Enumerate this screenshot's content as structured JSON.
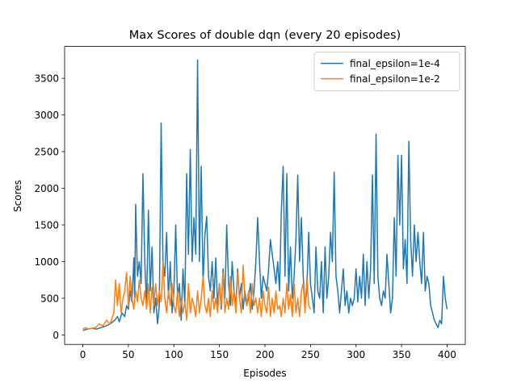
{
  "chart_data": {
    "type": "line",
    "title": "Max Scores of double dqn (every 20 episodes)",
    "x_label": "Episodes",
    "y_label": "Scores",
    "xlim": [
      -20,
      420
    ],
    "ylim": [
      -130,
      3935
    ],
    "xticks": [
      0,
      50,
      100,
      150,
      200,
      250,
      300,
      350,
      400
    ],
    "yticks": [
      0,
      500,
      1000,
      1500,
      2000,
      2500,
      3000,
      3500
    ],
    "legend": "upper right",
    "series": [
      {
        "name": "final_epsilon=1e-4",
        "color": "#1f77b4",
        "x": [
          0,
          5,
          10,
          15,
          20,
          25,
          30,
          35,
          38,
          40,
          43,
          46,
          48,
          50,
          52,
          54,
          56,
          57,
          58,
          60,
          62,
          64,
          66,
          68,
          70,
          72,
          74,
          76,
          78,
          80,
          82,
          84,
          86,
          88,
          90,
          92,
          94,
          96,
          98,
          100,
          102,
          104,
          106,
          108,
          110,
          112,
          114,
          116,
          118,
          120,
          122,
          124,
          126,
          128,
          130,
          132,
          134,
          136,
          138,
          140,
          142,
          144,
          146,
          148,
          150,
          152,
          154,
          156,
          158,
          160,
          162,
          164,
          166,
          168,
          170,
          172,
          174,
          176,
          178,
          180,
          182,
          184,
          186,
          188,
          190,
          192,
          194,
          196,
          198,
          200,
          202,
          204,
          206,
          208,
          210,
          212,
          214,
          216,
          218,
          220,
          222,
          224,
          226,
          228,
          230,
          232,
          234,
          236,
          238,
          240,
          242,
          244,
          246,
          248,
          250,
          252,
          254,
          256,
          258,
          260,
          262,
          264,
          266,
          268,
          270,
          272,
          274,
          276,
          278,
          280,
          282,
          284,
          286,
          288,
          290,
          292,
          294,
          296,
          298,
          300,
          302,
          304,
          306,
          308,
          310,
          312,
          314,
          316,
          318,
          320,
          322,
          324,
          326,
          328,
          330,
          332,
          334,
          336,
          338,
          340,
          342,
          344,
          346,
          348,
          350,
          352,
          354,
          356,
          358,
          360,
          362,
          364,
          366,
          368,
          370,
          372,
          374,
          376,
          378,
          380,
          382,
          384,
          386,
          388,
          390,
          392,
          394,
          396,
          398,
          400
        ],
        "values": [
          60,
          80,
          90,
          80,
          100,
          120,
          150,
          200,
          250,
          180,
          300,
          250,
          400,
          350,
          600,
          450,
          1050,
          500,
          1780,
          800,
          1000,
          700,
          2200,
          1000,
          400,
          1700,
          600,
          1200,
          300,
          500,
          150,
          400,
          2890,
          1000,
          800,
          1400,
          500,
          1000,
          300,
          600,
          1500,
          500,
          700,
          200,
          900,
          400,
          2200,
          1100,
          2530,
          1000,
          1600,
          1100,
          3750,
          1000,
          2300,
          700,
          1350,
          1620,
          800,
          600,
          1000,
          500,
          1050,
          400,
          700,
          350,
          900,
          500,
          1500,
          700,
          400,
          1000,
          600,
          400,
          900,
          500,
          700,
          350,
          600,
          400,
          500,
          700,
          350,
          600,
          1000,
          1600,
          1000,
          500,
          800,
          700,
          600,
          900,
          1300,
          1100,
          900,
          700,
          1000,
          600,
          1700,
          2300,
          800,
          2200,
          600,
          1200,
          500,
          800,
          1300,
          2180,
          1000,
          1600,
          800,
          400,
          600,
          1400,
          700,
          500,
          300,
          1200,
          600,
          500,
          1000,
          300,
          1200,
          500,
          800,
          1400,
          1000,
          2220,
          800,
          600,
          300,
          600,
          900,
          400,
          600,
          300,
          500,
          400,
          500,
          900,
          450,
          800,
          500,
          1100,
          400,
          1000,
          500,
          900,
          2180,
          700,
          2740,
          800,
          500,
          400,
          600,
          500,
          1100,
          700,
          300,
          500,
          1600,
          800,
          2450,
          1500,
          2450,
          900,
          1300,
          700,
          2640,
          1300,
          800,
          1500,
          1000,
          1400,
          1000,
          700,
          1400,
          600,
          800,
          700,
          400,
          300,
          200,
          150,
          100,
          200,
          150,
          800,
          500,
          350
        ]
      },
      {
        "name": "final_epsilon=1e-2",
        "color": "#ff7f0e",
        "x": [
          0,
          3,
          6,
          10,
          14,
          18,
          22,
          26,
          30,
          34,
          36,
          38,
          40,
          42,
          44,
          46,
          48,
          50,
          52,
          54,
          56,
          58,
          60,
          62,
          64,
          66,
          68,
          70,
          72,
          74,
          76,
          78,
          80,
          82,
          84,
          86,
          88,
          90,
          92,
          94,
          96,
          98,
          100,
          102,
          104,
          106,
          108,
          110,
          112,
          114,
          116,
          118,
          120,
          122,
          124,
          126,
          128,
          130,
          132,
          134,
          136,
          138,
          140,
          142,
          144,
          146,
          148,
          150,
          152,
          154,
          156,
          158,
          160,
          162,
          164,
          166,
          168,
          170,
          172,
          174,
          176,
          178,
          180,
          182,
          184,
          186,
          188,
          190,
          192,
          194,
          196,
          198,
          200,
          202,
          204,
          206,
          208,
          210,
          212,
          214,
          216,
          218,
          220,
          222,
          224,
          226,
          228,
          230,
          232,
          234,
          236,
          238,
          240,
          242,
          244,
          246,
          248,
          250
        ],
        "values": [
          80,
          100,
          80,
          90,
          100,
          150,
          120,
          200,
          150,
          300,
          750,
          400,
          700,
          300,
          500,
          600,
          850,
          400,
          800,
          500,
          350,
          600,
          450,
          750,
          500,
          400,
          600,
          350,
          700,
          300,
          650,
          400,
          700,
          400,
          600,
          450,
          1000,
          500,
          300,
          600,
          400,
          700,
          400,
          300,
          600,
          250,
          500,
          300,
          450,
          200,
          700,
          300,
          500,
          400,
          250,
          600,
          300,
          500,
          800,
          400,
          300,
          500,
          250,
          600,
          350,
          500,
          300,
          700,
          400,
          850,
          300,
          500,
          350,
          800,
          400,
          600,
          300,
          850,
          500,
          300,
          950,
          500,
          400,
          600,
          300,
          700,
          400,
          500,
          300,
          500,
          250,
          600,
          400,
          300,
          650,
          250,
          500,
          300,
          600,
          350,
          400,
          250,
          500,
          300,
          700,
          350,
          550,
          250,
          700,
          300,
          500,
          250,
          600,
          700,
          300,
          800,
          400,
          350
        ]
      }
    ]
  }
}
